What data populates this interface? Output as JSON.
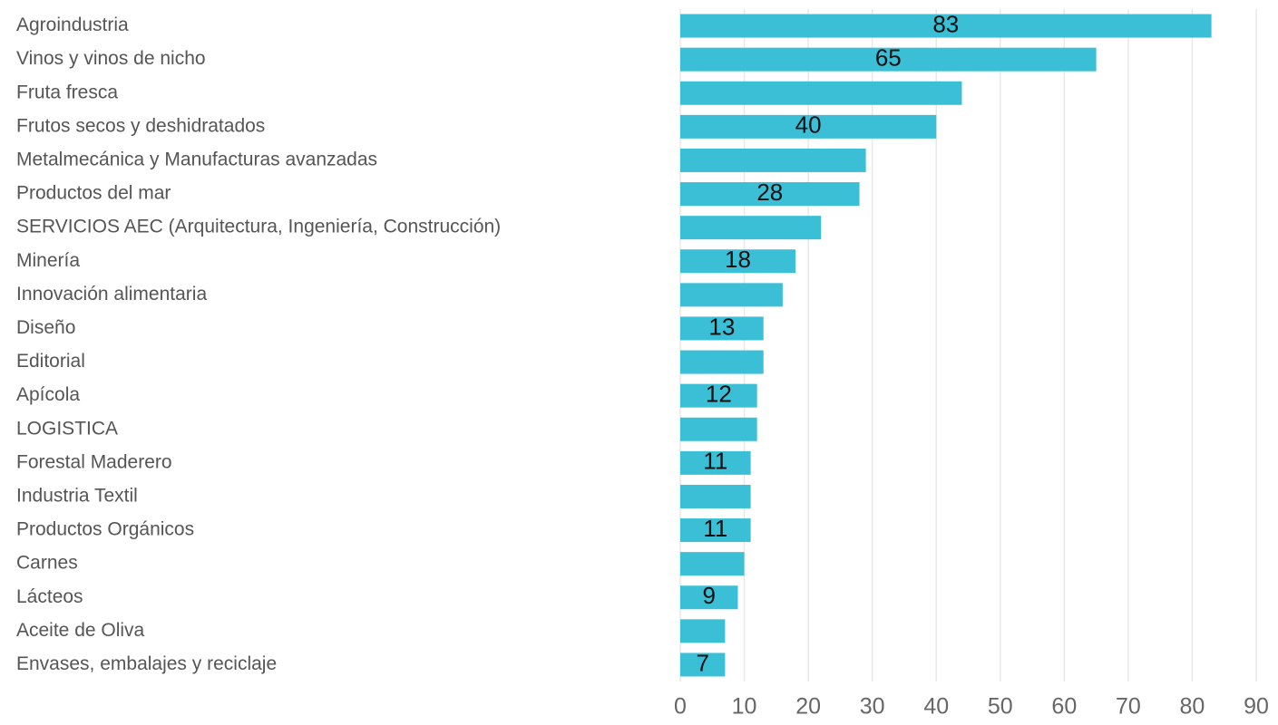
{
  "chart_data": {
    "type": "bar",
    "orientation": "horizontal",
    "categories": [
      "Agroindustria",
      "Vinos y vinos de nicho",
      "Fruta fresca",
      "Frutos secos y deshidratados",
      "Metalmecánica y Manufacturas avanzadas",
      "Productos del mar",
      "SERVICIOS AEC (Arquitectura, Ingeniería, Construcción)",
      "Minería",
      "Innovación alimentaria",
      "Diseño",
      "Editorial",
      "Apícola",
      "LOGISTICA",
      "Forestal Maderero",
      "Industria Textil",
      "Productos Orgánicos",
      "Carnes",
      "Lácteos",
      "Aceite de Oliva",
      "Envases, embalajes y reciclaje"
    ],
    "values": [
      83,
      65,
      44,
      40,
      29,
      28,
      22,
      18,
      16,
      13,
      13,
      12,
      12,
      11,
      11,
      11,
      10,
      9,
      7,
      7
    ],
    "value_labels": [
      "83",
      "65",
      null,
      "40",
      null,
      "28",
      null,
      "18",
      null,
      "13",
      null,
      "12",
      null,
      "11",
      null,
      "11",
      null,
      "9",
      null,
      "7"
    ],
    "color": "#3bbfd6",
    "xlim": [
      0,
      90
    ],
    "xticks": [
      0,
      10,
      20,
      30,
      40,
      50,
      60,
      70,
      80,
      90
    ],
    "grid": true
  }
}
